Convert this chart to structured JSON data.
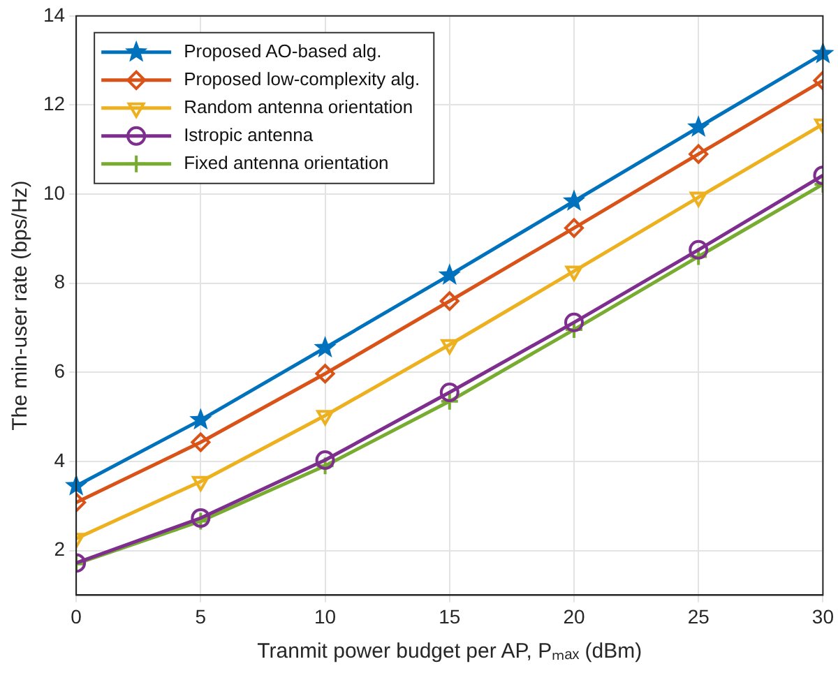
{
  "chart_data": {
    "type": "line",
    "xlabel": "Tranmit power budget per AP, Pₘₐₓ (dBm)",
    "ylabel": "The min-user rate (bps/Hz)",
    "x": [
      0,
      5,
      10,
      15,
      20,
      25,
      30
    ],
    "series": [
      {
        "name": "Proposed AO-based alg.",
        "color": "#0072bd",
        "marker": "star",
        "values": [
          3.45,
          4.93,
          6.55,
          8.18,
          9.84,
          11.5,
          13.15
        ]
      },
      {
        "name": "Proposed low-complexity alg.",
        "color": "#d95319",
        "marker": "diamond",
        "values": [
          3.08,
          4.43,
          5.97,
          7.6,
          9.24,
          10.9,
          12.55
        ]
      },
      {
        "name": "Random antenna orientation",
        "color": "#edb120",
        "marker": "triangle",
        "values": [
          2.27,
          3.55,
          5.03,
          6.62,
          8.27,
          9.93,
          11.57
        ]
      },
      {
        "name": "Istropic antenna",
        "color": "#7e2f8e",
        "marker": "circle",
        "values": [
          1.72,
          2.73,
          4.03,
          5.55,
          7.12,
          8.75,
          10.42
        ]
      },
      {
        "name": "Fixed antenna orientation",
        "color": "#77ac30",
        "marker": "cross",
        "values": [
          1.7,
          2.66,
          3.9,
          5.35,
          6.96,
          8.6,
          10.22
        ]
      }
    ],
    "xlim": [
      0,
      30
    ],
    "xticks": [
      0,
      5,
      10,
      15,
      20,
      25,
      30
    ],
    "ylim": [
      1,
      14
    ],
    "yticks": [
      2,
      4,
      6,
      8,
      10,
      12,
      14
    ],
    "grid": true,
    "legend": "top left",
    "line_style": "solid"
  }
}
